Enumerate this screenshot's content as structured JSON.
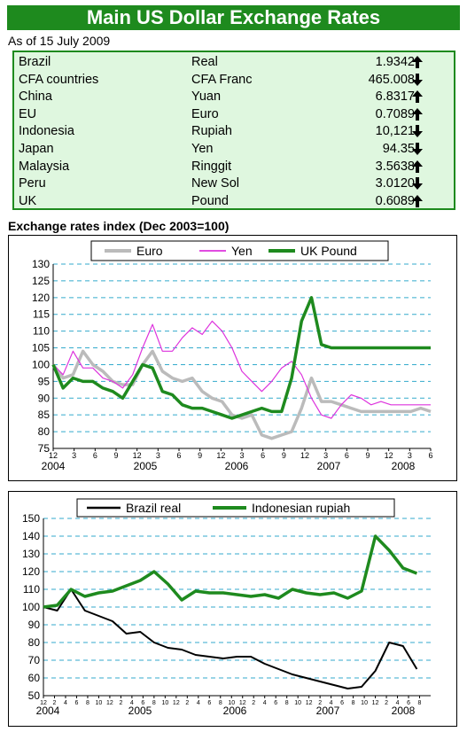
{
  "header": {
    "title": "Main US Dollar Exchange Rates",
    "as_of": "As of 15 July 2009"
  },
  "rates": [
    {
      "country": "Brazil",
      "currency": "Real",
      "rate": "1.9342",
      "direction": "up"
    },
    {
      "country": "CFA countries",
      "currency": "CFA Franc",
      "rate": "465.008",
      "direction": "down"
    },
    {
      "country": "China",
      "currency": "Yuan",
      "rate": "6.8317",
      "direction": "up"
    },
    {
      "country": "EU",
      "currency": "Euro",
      "rate": "0.7089",
      "direction": "up"
    },
    {
      "country": "Indonesia",
      "currency": "Rupiah",
      "rate": "10,121",
      "direction": "down"
    },
    {
      "country": "Japan",
      "currency": "Yen",
      "rate": "94.35",
      "direction": "down"
    },
    {
      "country": "Malaysia",
      "currency": "Ringgit",
      "rate": "3.5638",
      "direction": "up"
    },
    {
      "country": "Peru",
      "currency": "New Sol",
      "rate": "3.0120",
      "direction": "down"
    },
    {
      "country": "UK",
      "currency": "Pound",
      "rate": "0.6089",
      "direction": "up"
    }
  ],
  "colors": {
    "banner": "#1e8a1e",
    "table_bg": "#dff7df",
    "euro": "#bbbbbb",
    "yen": "#dd33dd",
    "pound": "#1e8a1e",
    "brazil": "#000000",
    "rupiah": "#1e8a1e",
    "grid": "#33aacc"
  },
  "icons": {
    "up": "up-arrow-icon",
    "down": "down-arrow-icon"
  },
  "chart_data": [
    {
      "type": "line",
      "title": "Exchange rates index (Dec 2003=100)",
      "legend_position": "top",
      "ylim": [
        75,
        130
      ],
      "y_ticks": [
        75,
        80,
        85,
        90,
        95,
        100,
        105,
        110,
        115,
        120,
        125,
        130
      ],
      "x_month_ticks": [
        "12",
        "3",
        "6",
        "9",
        "12",
        "3",
        "6",
        "9",
        "12",
        "3",
        "6",
        "9",
        "12",
        "3",
        "6",
        "9",
        "12",
        "3",
        "6"
      ],
      "x_year_labels": [
        "2004",
        "2005",
        "2006",
        "2007",
        "2008"
      ],
      "x_months_range": [
        0,
        19
      ],
      "grid": true,
      "series": [
        {
          "name": "Euro",
          "color": "#bbbbbb",
          "x": [
            0,
            0.5,
            1,
            1.5,
            2,
            2.5,
            3,
            3.5,
            4,
            4.5,
            5,
            5.5,
            6,
            6.5,
            7,
            7.5,
            8,
            8.5,
            9,
            9.5,
            10,
            10.5,
            11,
            11.5,
            12,
            12.5,
            13,
            13.5,
            14,
            14.5,
            15,
            15.5,
            16,
            16.5,
            17,
            17.5,
            18,
            18.5,
            19
          ],
          "values": [
            100,
            96,
            97,
            104,
            100,
            98,
            95,
            94,
            94,
            100,
            104,
            98,
            96,
            95,
            96,
            92,
            90,
            89,
            85,
            84,
            85,
            79,
            78,
            79,
            80,
            87,
            96,
            89,
            89,
            88,
            87,
            86,
            86,
            86,
            86,
            86,
            86,
            87,
            86
          ]
        },
        {
          "name": "Yen",
          "color": "#dd33dd",
          "x": [
            0,
            0.5,
            1,
            1.5,
            2,
            2.5,
            3,
            3.5,
            4,
            4.5,
            5,
            5.5,
            6,
            6.5,
            7,
            7.5,
            8,
            8.5,
            9,
            9.5,
            10,
            10.5,
            11,
            11.5,
            12,
            12.5,
            13,
            13.5,
            14,
            14.5,
            15,
            15.5,
            16,
            16.5,
            17,
            17.5,
            18,
            18.5,
            19
          ],
          "values": [
            100,
            97,
            104,
            99,
            99,
            96,
            95,
            93,
            97,
            105,
            112,
            104,
            104,
            108,
            111,
            109,
            113,
            110,
            105,
            98,
            95,
            92,
            95,
            99,
            101,
            97,
            90,
            85,
            84,
            88,
            91,
            90,
            88,
            89,
            88,
            88,
            88,
            88,
            88
          ]
        },
        {
          "name": "UK Pound",
          "color": "#1e8a1e",
          "x": [
            0,
            0.5,
            1,
            1.5,
            2,
            2.5,
            3,
            3.5,
            4,
            4.5,
            5,
            5.5,
            6,
            6.5,
            7,
            7.5,
            8,
            8.5,
            9,
            9.5,
            10,
            10.5,
            11,
            11.5,
            12,
            12.5,
            13,
            13.5,
            14,
            14.5,
            15,
            15.5,
            16,
            16.5,
            17,
            17.5,
            18,
            18.5,
            19
          ],
          "values": [
            100,
            93,
            96,
            95,
            95,
            93,
            92,
            90,
            95,
            100,
            99,
            92,
            91,
            88,
            87,
            87,
            86,
            85,
            84,
            85,
            86,
            87,
            86,
            86,
            96,
            113,
            120,
            106,
            105,
            105,
            105,
            105,
            105,
            105,
            105,
            105,
            105,
            105,
            105
          ]
        }
      ]
    },
    {
      "type": "line",
      "title": "",
      "legend_position": "top",
      "ylim": [
        50,
        150
      ],
      "y_ticks": [
        50,
        60,
        70,
        80,
        90,
        100,
        110,
        120,
        130,
        140,
        150
      ],
      "x_month_ticks": [
        "12",
        "2",
        "4",
        "6",
        "8",
        "10",
        "12",
        "2",
        "4",
        "6",
        "8",
        "10",
        "12",
        "2",
        "4",
        "6",
        "8",
        "10",
        "12",
        "2",
        "4",
        "6",
        "8",
        "10",
        "12",
        "2",
        "4",
        "6",
        "8",
        "10",
        "12",
        "2",
        "4",
        "6",
        "8"
      ],
      "x_year_labels": [
        "2004",
        "2005",
        "2006",
        "2007",
        "2008"
      ],
      "x_months_range": [
        0,
        56
      ],
      "grid": true,
      "series": [
        {
          "name": "Brazil real",
          "color": "#000000",
          "x": [
            0,
            2,
            4,
            6,
            8,
            10,
            12,
            14,
            16,
            18,
            20,
            22,
            24,
            26,
            28,
            30,
            32,
            34,
            36,
            38,
            40,
            42,
            44,
            46,
            48,
            50,
            52,
            54
          ],
          "values": [
            100,
            98,
            110,
            98,
            95,
            92,
            85,
            86,
            80,
            77,
            76,
            73,
            72,
            71,
            72,
            72,
            68,
            65,
            62,
            60,
            58,
            56,
            54,
            55,
            64,
            80,
            78,
            65
          ]
        },
        {
          "name": "Indonesian rupiah",
          "color": "#1e8a1e",
          "x": [
            0,
            2,
            4,
            6,
            8,
            10,
            12,
            14,
            16,
            18,
            20,
            22,
            24,
            26,
            28,
            30,
            32,
            34,
            36,
            38,
            40,
            42,
            44,
            46,
            48,
            50,
            52,
            54
          ],
          "values": [
            100,
            101,
            110,
            106,
            108,
            109,
            112,
            115,
            120,
            113,
            104,
            109,
            108,
            108,
            107,
            106,
            107,
            105,
            110,
            108,
            107,
            108,
            105,
            109,
            140,
            132,
            122,
            119
          ]
        }
      ]
    }
  ]
}
